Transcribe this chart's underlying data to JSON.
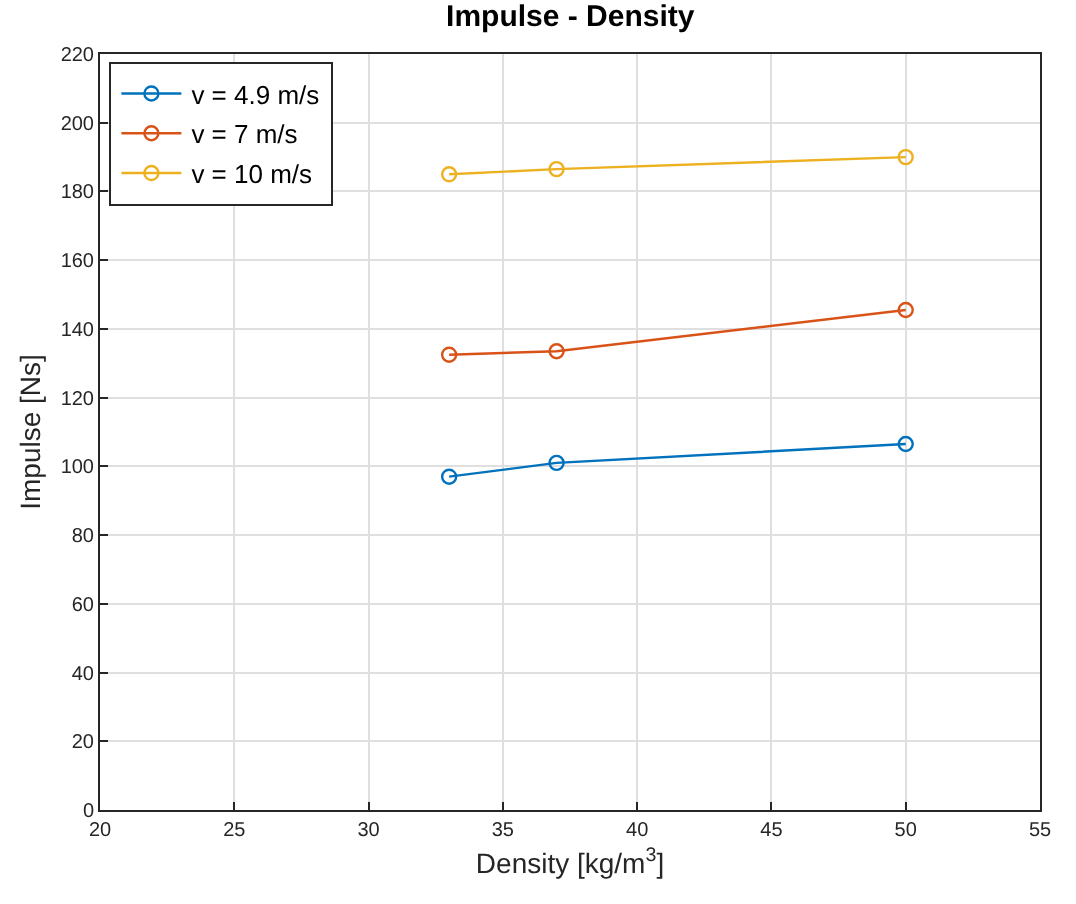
{
  "chart_data": {
    "type": "line",
    "title": "Impulse - Density",
    "xlabel": "Density [kg/m$^{3}$]",
    "ylabel": "Impulse [Ns]",
    "x": [
      33,
      37,
      50
    ],
    "series": [
      {
        "name": "v = 4.9 m/s",
        "color": "#0072bd",
        "values": [
          97,
          101,
          106.5
        ]
      },
      {
        "name": "v = 7 m/s",
        "color": "#d95319",
        "values": [
          132.5,
          133.5,
          145.5
        ]
      },
      {
        "name": "v = 10 m/s",
        "color": "#edb120",
        "values": [
          185,
          186.5,
          190
        ]
      }
    ],
    "xlim": [
      20,
      55
    ],
    "xticks": [
      20,
      25,
      30,
      35,
      40,
      45,
      50,
      55
    ],
    "ylim": [
      0,
      220
    ],
    "yticks": [
      0,
      20,
      40,
      60,
      80,
      100,
      120,
      140,
      160,
      180,
      200,
      220
    ],
    "grid": true,
    "legend": "top left",
    "marker": "circle",
    "line_style": "solid"
  }
}
